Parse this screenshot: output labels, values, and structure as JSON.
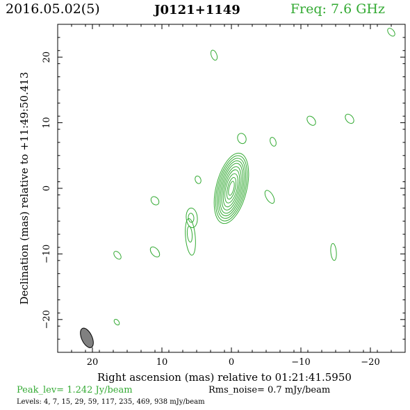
{
  "header": {
    "date": "2016.05.02(5)",
    "source": "J0121+1149",
    "freq": "Freq: 7.6 GHz"
  },
  "footer": {
    "peak": "Peak_lev=  1.242 Jy/beam",
    "rms": "Rms_noise=  0.7 mJy/beam",
    "levels": "Levels:  4,  7,  15,  29,  59, 117, 235, 469, 938 mJy/beam"
  },
  "chart_data": {
    "type": "contour",
    "xlabel": "Right ascension (mas) relative to 01:21:41.5950",
    "ylabel": "Declination (mas) relative to +11:49:50.413",
    "xlim": [
      25,
      -25
    ],
    "ylim": [
      -25,
      25
    ],
    "x_ticks": [
      20,
      10,
      0,
      -10,
      -20
    ],
    "x_tick_labels": [
      "20",
      "10",
      "0",
      "−10",
      "−20"
    ],
    "y_ticks": [
      -20,
      -10,
      0,
      10,
      20
    ],
    "y_tick_labels": [
      "−20",
      "−10",
      "0",
      "10",
      "20"
    ],
    "contour_color": "#33aa33",
    "beam_color": "#808080",
    "levels_mJy": [
      4,
      7,
      15,
      29,
      59,
      117,
      235,
      469,
      938
    ],
    "core": {
      "center": [
        0.0,
        0.0
      ],
      "angle_deg": 14,
      "semi_axes": [
        [
          2.2,
          5.5
        ],
        [
          2.0,
          5.1
        ],
        [
          1.8,
          4.7
        ],
        [
          1.6,
          4.3
        ],
        [
          1.4,
          3.9
        ],
        [
          1.2,
          3.4
        ],
        [
          1.0,
          2.9
        ],
        [
          0.8,
          2.3
        ],
        [
          0.55,
          1.7
        ],
        [
          0.35,
          1.1
        ]
      ]
    },
    "components": [
      {
        "x": -23.0,
        "y": 23.8,
        "a": 0.4,
        "b": 0.7,
        "angle": -40
      },
      {
        "x": 2.5,
        "y": 20.3,
        "a": 0.4,
        "b": 0.8,
        "angle": -20
      },
      {
        "x": -11.5,
        "y": 10.3,
        "a": 0.5,
        "b": 0.8,
        "angle": -40
      },
      {
        "x": -17.0,
        "y": 10.6,
        "a": 0.5,
        "b": 0.8,
        "angle": -40
      },
      {
        "x": -1.5,
        "y": 7.6,
        "a": 0.6,
        "b": 0.8,
        "angle": -20
      },
      {
        "x": -6.0,
        "y": 7.1,
        "a": 0.4,
        "b": 0.7,
        "angle": -20
      },
      {
        "x": 4.8,
        "y": 1.3,
        "a": 0.4,
        "b": 0.6,
        "angle": -20
      },
      {
        "x": -5.5,
        "y": -1.3,
        "a": 0.5,
        "b": 1.1,
        "angle": -30
      },
      {
        "x": 11.0,
        "y": -1.9,
        "a": 0.5,
        "b": 0.7,
        "angle": -40
      },
      {
        "x": 5.7,
        "y": -4.5,
        "a": 0.8,
        "b": 1.5,
        "angle": -5
      },
      {
        "x": 5.8,
        "y": -4.5,
        "a": 0.4,
        "b": 0.7,
        "angle": -5
      },
      {
        "x": 5.9,
        "y": -7.4,
        "a": 0.7,
        "b": 2.8,
        "angle": -5
      },
      {
        "x": 6.0,
        "y": -7.0,
        "a": 0.35,
        "b": 1.2,
        "angle": -5
      },
      {
        "x": 16.4,
        "y": -10.2,
        "a": 0.4,
        "b": 0.7,
        "angle": -40
      },
      {
        "x": 11.0,
        "y": -9.7,
        "a": 0.5,
        "b": 0.9,
        "angle": -40
      },
      {
        "x": -14.7,
        "y": -9.7,
        "a": 0.4,
        "b": 1.3,
        "angle": -5
      },
      {
        "x": 16.5,
        "y": -20.4,
        "a": 0.3,
        "b": 0.5,
        "angle": -40
      }
    ],
    "beam": {
      "x": 20.8,
      "y": -22.8,
      "a": 0.75,
      "b": 1.6,
      "angle": -25
    }
  }
}
